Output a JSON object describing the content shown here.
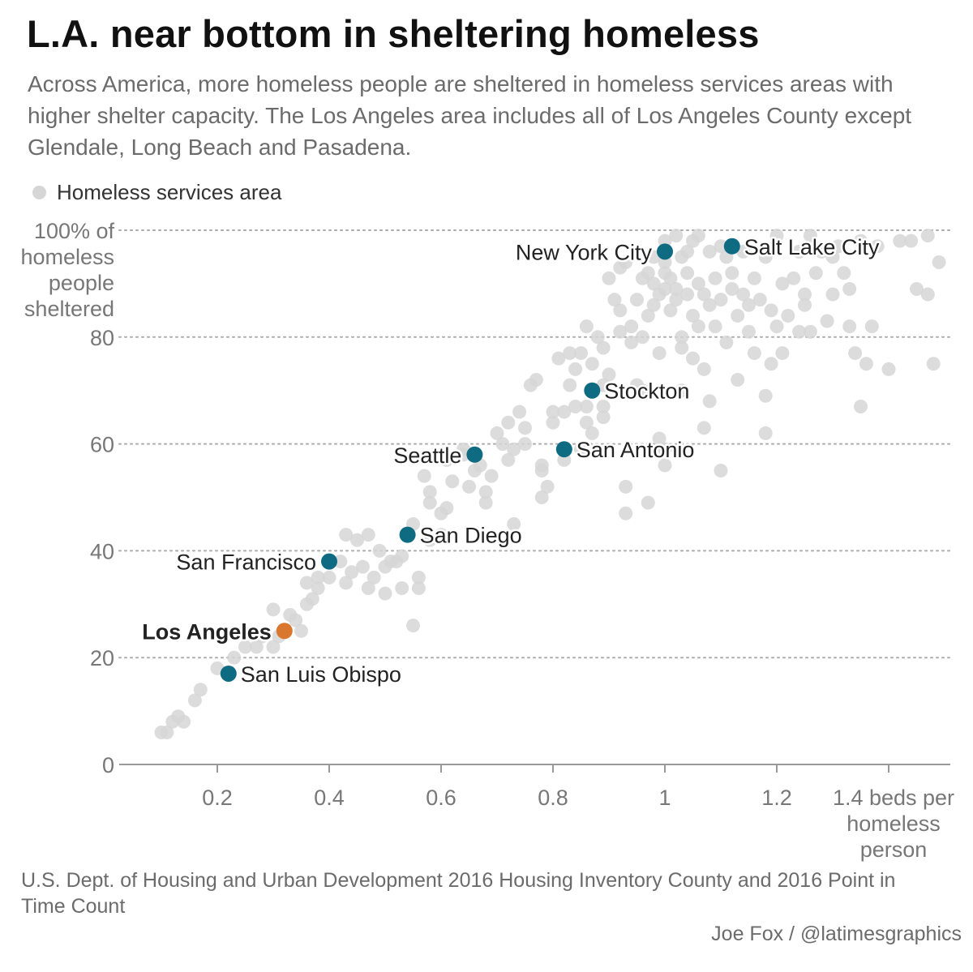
{
  "title": "L.A. near bottom in sheltering homeless",
  "subtitle": "Across America, more homeless people are sheltered in homeless services areas with higher shelter capacity. The Los Angeles area includes all of Los Angeles County except Glendale, Long Beach and Pasadena.",
  "legend": {
    "label": "Homeless services area"
  },
  "source": "U.S. Dept. of Housing and Urban Development 2016 Housing Inventory County and 2016 Point in Time Count",
  "credit": "Joe Fox / @latimesgraphics",
  "colors": {
    "background_points": "#d6d6d6",
    "highlight": "#0f6b82",
    "los_angeles": "#d9772f",
    "axis_text": "#777777",
    "grid": "#aaaaaa"
  },
  "chart_data": {
    "type": "scatter",
    "xlabel": "beds per homeless person",
    "ylabel": "% of homeless people sheltered",
    "xlim": [
      0,
      1.5
    ],
    "ylim": [
      0,
      100
    ],
    "x_ticks": [
      {
        "value": 0.2,
        "label": "0.2"
      },
      {
        "value": 0.4,
        "label": "0.4"
      },
      {
        "value": 0.6,
        "label": "0.6"
      },
      {
        "value": 0.8,
        "label": "0.8"
      },
      {
        "value": 1.0,
        "label": "1"
      },
      {
        "value": 1.2,
        "label": "1.2"
      },
      {
        "value": 1.4,
        "label": [
          "1.4 beds per",
          "homeless",
          "person"
        ]
      }
    ],
    "y_ticks": [
      {
        "value": 0,
        "label": "0"
      },
      {
        "value": 20,
        "label": "20"
      },
      {
        "value": 40,
        "label": "40"
      },
      {
        "value": 60,
        "label": "60"
      },
      {
        "value": 80,
        "label": "80"
      },
      {
        "value": 100,
        "label": [
          "100% of",
          "homeless",
          "people",
          "sheltered"
        ]
      }
    ],
    "grid": true,
    "highlighted": [
      {
        "label": "New York City",
        "x": 1.0,
        "y": 96,
        "color": "#0f6b82",
        "label_side": "left",
        "bold": false
      },
      {
        "label": "Salt Lake City",
        "x": 1.12,
        "y": 97,
        "color": "#0f6b82",
        "label_side": "right",
        "bold": false
      },
      {
        "label": "Stockton",
        "x": 0.87,
        "y": 70,
        "color": "#0f6b82",
        "label_side": "right",
        "bold": false
      },
      {
        "label": "Seattle",
        "x": 0.66,
        "y": 58,
        "color": "#0f6b82",
        "label_side": "left",
        "bold": false
      },
      {
        "label": "San Antonio",
        "x": 0.82,
        "y": 59,
        "color": "#0f6b82",
        "label_side": "right",
        "bold": false
      },
      {
        "label": "San Diego",
        "x": 0.54,
        "y": 43,
        "color": "#0f6b82",
        "label_side": "right",
        "bold": false
      },
      {
        "label": "San Francisco",
        "x": 0.4,
        "y": 38,
        "color": "#0f6b82",
        "label_side": "left",
        "bold": false
      },
      {
        "label": "Los Angeles",
        "x": 0.32,
        "y": 25,
        "color": "#d9772f",
        "label_side": "left",
        "bold": true
      },
      {
        "label": "San Luis Obispo",
        "x": 0.22,
        "y": 17,
        "color": "#0f6b82",
        "label_side": "right",
        "bold": false
      }
    ],
    "points": [
      [
        0.1,
        6
      ],
      [
        0.11,
        6
      ],
      [
        0.12,
        8
      ],
      [
        0.13,
        9
      ],
      [
        0.14,
        8
      ],
      [
        0.16,
        12
      ],
      [
        0.17,
        14
      ],
      [
        0.2,
        18
      ],
      [
        0.23,
        20
      ],
      [
        0.25,
        22
      ],
      [
        0.27,
        22
      ],
      [
        0.28,
        24
      ],
      [
        0.3,
        22
      ],
      [
        0.31,
        24
      ],
      [
        0.3,
        29
      ],
      [
        0.33,
        28
      ],
      [
        0.34,
        27
      ],
      [
        0.35,
        25
      ],
      [
        0.36,
        30
      ],
      [
        0.36,
        34
      ],
      [
        0.37,
        31
      ],
      [
        0.38,
        33
      ],
      [
        0.38,
        35
      ],
      [
        0.4,
        35
      ],
      [
        0.42,
        38
      ],
      [
        0.43,
        34
      ],
      [
        0.44,
        36
      ],
      [
        0.43,
        43
      ],
      [
        0.45,
        42
      ],
      [
        0.46,
        37
      ],
      [
        0.47,
        43
      ],
      [
        0.47,
        33
      ],
      [
        0.48,
        35
      ],
      [
        0.49,
        40
      ],
      [
        0.5,
        37
      ],
      [
        0.5,
        32
      ],
      [
        0.51,
        38
      ],
      [
        0.52,
        38
      ],
      [
        0.53,
        33
      ],
      [
        0.53,
        39
      ],
      [
        0.55,
        45
      ],
      [
        0.55,
        26
      ],
      [
        0.56,
        35
      ],
      [
        0.56,
        33
      ],
      [
        0.57,
        54
      ],
      [
        0.58,
        51
      ],
      [
        0.58,
        42
      ],
      [
        0.58,
        49
      ],
      [
        0.6,
        47
      ],
      [
        0.6,
        43
      ],
      [
        0.61,
        48
      ],
      [
        0.61,
        57
      ],
      [
        0.62,
        53
      ],
      [
        0.64,
        58
      ],
      [
        0.64,
        59
      ],
      [
        0.65,
        52
      ],
      [
        0.66,
        55
      ],
      [
        0.67,
        56
      ],
      [
        0.68,
        49
      ],
      [
        0.68,
        51
      ],
      [
        0.69,
        54
      ],
      [
        0.7,
        62
      ],
      [
        0.71,
        60
      ],
      [
        0.72,
        64
      ],
      [
        0.72,
        57
      ],
      [
        0.73,
        59
      ],
      [
        0.73,
        45
      ],
      [
        0.74,
        66
      ],
      [
        0.75,
        60
      ],
      [
        0.75,
        63
      ],
      [
        0.76,
        71
      ],
      [
        0.77,
        72
      ],
      [
        0.78,
        56
      ],
      [
        0.78,
        55
      ],
      [
        0.78,
        50
      ],
      [
        0.79,
        52
      ],
      [
        0.8,
        64
      ],
      [
        0.8,
        66
      ],
      [
        0.81,
        76
      ],
      [
        0.82,
        57
      ],
      [
        0.82,
        66
      ],
      [
        0.83,
        71
      ],
      [
        0.83,
        77
      ],
      [
        0.84,
        74
      ],
      [
        0.84,
        67
      ],
      [
        0.85,
        77
      ],
      [
        0.85,
        59
      ],
      [
        0.86,
        64
      ],
      [
        0.86,
        67
      ],
      [
        0.86,
        82
      ],
      [
        0.87,
        75
      ],
      [
        0.87,
        62
      ],
      [
        0.88,
        80
      ],
      [
        0.89,
        67
      ],
      [
        0.89,
        65
      ],
      [
        0.89,
        71
      ],
      [
        0.89,
        78
      ],
      [
        0.9,
        73
      ],
      [
        0.9,
        91
      ],
      [
        0.91,
        87
      ],
      [
        0.92,
        81
      ],
      [
        0.92,
        93
      ],
      [
        0.92,
        85
      ],
      [
        0.93,
        94
      ],
      [
        0.93,
        52
      ],
      [
        0.93,
        47
      ],
      [
        0.94,
        79
      ],
      [
        0.94,
        82
      ],
      [
        0.95,
        71
      ],
      [
        0.95,
        87
      ],
      [
        0.96,
        80
      ],
      [
        0.96,
        91
      ],
      [
        0.96,
        70
      ],
      [
        0.97,
        84
      ],
      [
        0.97,
        92
      ],
      [
        0.97,
        49
      ],
      [
        0.98,
        86
      ],
      [
        0.98,
        90
      ],
      [
        0.98,
        95
      ],
      [
        0.99,
        77
      ],
      [
        0.99,
        88
      ],
      [
        0.99,
        61
      ],
      [
        1.0,
        89
      ],
      [
        1.0,
        92
      ],
      [
        1.0,
        94
      ],
      [
        1.0,
        98
      ],
      [
        1.0,
        59
      ],
      [
        1.0,
        56
      ],
      [
        1.01,
        85
      ],
      [
        1.01,
        91
      ],
      [
        1.02,
        99
      ],
      [
        1.02,
        89
      ],
      [
        1.02,
        87
      ],
      [
        1.03,
        95
      ],
      [
        1.03,
        80
      ],
      [
        1.03,
        78
      ],
      [
        1.03,
        70
      ],
      [
        1.04,
        96
      ],
      [
        1.04,
        92
      ],
      [
        1.04,
        88
      ],
      [
        1.05,
        98
      ],
      [
        1.05,
        84
      ],
      [
        1.05,
        76
      ],
      [
        1.06,
        99
      ],
      [
        1.06,
        90
      ],
      [
        1.06,
        82
      ],
      [
        1.07,
        88
      ],
      [
        1.07,
        74
      ],
      [
        1.07,
        63
      ],
      [
        1.08,
        96
      ],
      [
        1.08,
        86
      ],
      [
        1.08,
        68
      ],
      [
        1.09,
        91
      ],
      [
        1.09,
        82
      ],
      [
        1.1,
        97
      ],
      [
        1.1,
        87
      ],
      [
        1.1,
        55
      ],
      [
        1.11,
        95
      ],
      [
        1.11,
        79
      ],
      [
        1.12,
        92
      ],
      [
        1.12,
        89
      ],
      [
        1.13,
        84
      ],
      [
        1.13,
        72
      ],
      [
        1.14,
        96
      ],
      [
        1.14,
        88
      ],
      [
        1.15,
        81
      ],
      [
        1.15,
        86
      ],
      [
        1.16,
        91
      ],
      [
        1.16,
        77
      ],
      [
        1.17,
        87
      ],
      [
        1.18,
        95
      ],
      [
        1.18,
        69
      ],
      [
        1.18,
        62
      ],
      [
        1.19,
        85
      ],
      [
        1.19,
        75
      ],
      [
        1.2,
        99
      ],
      [
        1.2,
        82
      ],
      [
        1.21,
        90
      ],
      [
        1.21,
        77
      ],
      [
        1.22,
        84
      ],
      [
        1.23,
        91
      ],
      [
        1.24,
        96
      ],
      [
        1.24,
        81
      ],
      [
        1.25,
        88
      ],
      [
        1.25,
        86
      ],
      [
        1.26,
        99
      ],
      [
        1.26,
        81
      ],
      [
        1.27,
        92
      ],
      [
        1.28,
        96
      ],
      [
        1.29,
        83
      ],
      [
        1.3,
        88
      ],
      [
        1.3,
        95
      ],
      [
        1.31,
        97
      ],
      [
        1.32,
        92
      ],
      [
        1.33,
        89
      ],
      [
        1.33,
        82
      ],
      [
        1.34,
        77
      ],
      [
        1.35,
        98
      ],
      [
        1.35,
        67
      ],
      [
        1.36,
        75
      ],
      [
        1.37,
        82
      ],
      [
        1.38,
        97
      ],
      [
        1.4,
        74
      ],
      [
        1.42,
        98
      ],
      [
        1.44,
        98
      ],
      [
        1.45,
        89
      ],
      [
        1.47,
        88
      ],
      [
        1.47,
        99
      ],
      [
        1.48,
        75
      ],
      [
        1.49,
        94
      ]
    ]
  }
}
